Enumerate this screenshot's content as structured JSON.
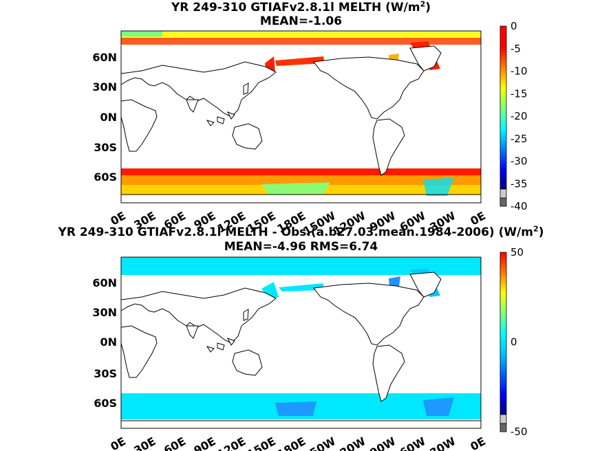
{
  "panels": [
    {
      "title_main": "YR 249-310 GTIAFv2.8.1l  MELTH (W/m",
      "title_sup": "2",
      "title_end": ")",
      "subtitle": "MEAN=-1.06",
      "colorbar_labels": [
        "0",
        "-5",
        "-10",
        "-15",
        "-20",
        "-25",
        "-30",
        "-35",
        "-40"
      ]
    },
    {
      "title_main": "YR 249-310 GTIAFv2.8.1l MELTH - Obs.(a.b27.03.mean.1984-2006) (W/m",
      "title_sup": "2",
      "title_end": ")",
      "subtitle": "MEAN=-4.96 RMS=6.74",
      "colorbar_labels": [
        "50",
        "0",
        "-50"
      ]
    }
  ],
  "lat_labels": [
    "60N",
    "30N",
    "0N",
    "30S",
    "60S"
  ],
  "lon_labels": [
    "0E",
    "30E",
    "60E",
    "90E",
    "120E",
    "150E",
    "180E",
    "150W",
    "120W",
    "90W",
    "60W",
    "30W",
    "0E"
  ],
  "colors": {
    "jet": [
      "#7f0000",
      "#ff0000",
      "#ff7f00",
      "#ffff00",
      "#7fff7f",
      "#00ffff",
      "#007fff",
      "#0000ff",
      "#00007f"
    ]
  }
}
